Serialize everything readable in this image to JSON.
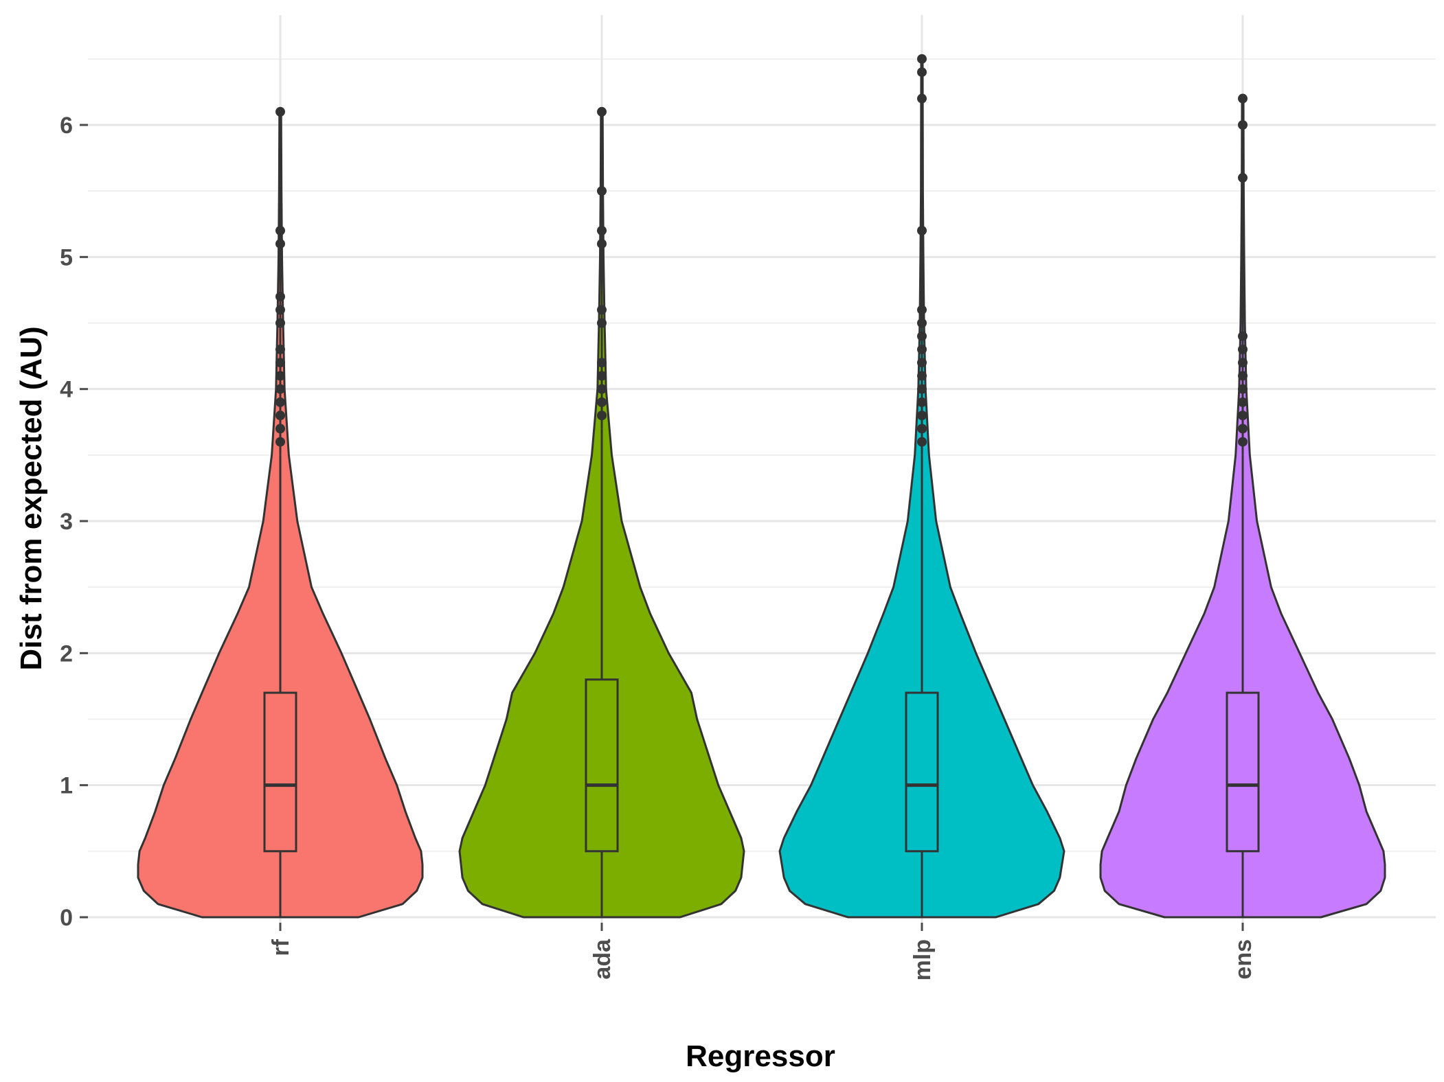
{
  "chart_data": {
    "type": "violin",
    "title": "",
    "xlabel": "Regressor",
    "ylabel": "Dist from expected (AU)",
    "categories": [
      "rf",
      "ada",
      "mlp",
      "ens"
    ],
    "ylim": [
      -0.15,
      6.6
    ],
    "yticks": [
      0,
      1,
      2,
      3,
      4,
      5,
      6
    ],
    "yticks_minor": [
      0.5,
      1.5,
      2.5,
      3.5,
      4.5,
      5.5,
      6.5
    ],
    "grid": true,
    "legend": "none",
    "colors": {
      "rf": "#F8766D",
      "ada": "#7CAE00",
      "mlp": "#00BFC4",
      "ens": "#C77CFF",
      "outline": "#333333",
      "grid": "#e6e6e6",
      "tick_text": "#4d4d4d"
    },
    "series": [
      {
        "category": "rf",
        "box": {
          "lower_whisker": 0,
          "q1": 0.5,
          "median": 1.0,
          "q3": 1.7,
          "upper_whisker": 3.5
        },
        "outliers": [
          3.6,
          3.7,
          3.8,
          3.9,
          4.0,
          4.1,
          4.2,
          4.3,
          4.5,
          4.6,
          4.7,
          5.1,
          5.2,
          6.1
        ],
        "violin_max": 6.1,
        "density": [
          [
            0.0,
            0.55
          ],
          [
            0.1,
            0.86
          ],
          [
            0.2,
            0.96
          ],
          [
            0.3,
            1.0
          ],
          [
            0.4,
            1.0
          ],
          [
            0.5,
            0.99
          ],
          [
            0.6,
            0.95
          ],
          [
            0.8,
            0.88
          ],
          [
            1.0,
            0.82
          ],
          [
            1.2,
            0.74
          ],
          [
            1.5,
            0.63
          ],
          [
            1.7,
            0.55
          ],
          [
            2.0,
            0.43
          ],
          [
            2.3,
            0.3
          ],
          [
            2.5,
            0.22
          ],
          [
            3.0,
            0.12
          ],
          [
            3.5,
            0.06
          ],
          [
            4.0,
            0.03
          ],
          [
            4.5,
            0.02
          ],
          [
            5.0,
            0.012
          ],
          [
            5.5,
            0.008
          ],
          [
            6.1,
            0.006
          ]
        ]
      },
      {
        "category": "ada",
        "box": {
          "lower_whisker": 0,
          "q1": 0.5,
          "median": 1.0,
          "q3": 1.8,
          "upper_whisker": 3.7
        },
        "outliers": [
          3.8,
          3.9,
          4.0,
          4.1,
          4.2,
          4.5,
          4.6,
          5.1,
          5.2,
          5.5,
          6.1
        ],
        "violin_max": 6.1,
        "density": [
          [
            0.0,
            0.55
          ],
          [
            0.1,
            0.84
          ],
          [
            0.2,
            0.94
          ],
          [
            0.3,
            0.98
          ],
          [
            0.5,
            1.0
          ],
          [
            0.6,
            0.98
          ],
          [
            0.8,
            0.9
          ],
          [
            1.0,
            0.82
          ],
          [
            1.2,
            0.76
          ],
          [
            1.5,
            0.67
          ],
          [
            1.7,
            0.63
          ],
          [
            2.0,
            0.47
          ],
          [
            2.3,
            0.34
          ],
          [
            2.5,
            0.27
          ],
          [
            3.0,
            0.14
          ],
          [
            3.5,
            0.07
          ],
          [
            4.0,
            0.03
          ],
          [
            4.5,
            0.02
          ],
          [
            5.0,
            0.012
          ],
          [
            5.5,
            0.008
          ],
          [
            6.1,
            0.006
          ]
        ]
      },
      {
        "category": "mlp",
        "box": {
          "lower_whisker": 0,
          "q1": 0.5,
          "median": 1.0,
          "q3": 1.7,
          "upper_whisker": 3.5
        },
        "outliers": [
          3.6,
          3.7,
          3.8,
          3.9,
          4.0,
          4.1,
          4.2,
          4.3,
          4.4,
          4.5,
          4.6,
          5.2,
          6.2,
          6.4,
          6.5
        ],
        "violin_max": 6.5,
        "density": [
          [
            0.0,
            0.52
          ],
          [
            0.1,
            0.82
          ],
          [
            0.2,
            0.93
          ],
          [
            0.3,
            0.97
          ],
          [
            0.5,
            1.0
          ],
          [
            0.6,
            0.97
          ],
          [
            0.8,
            0.88
          ],
          [
            1.0,
            0.78
          ],
          [
            1.2,
            0.7
          ],
          [
            1.5,
            0.58
          ],
          [
            1.7,
            0.5
          ],
          [
            2.0,
            0.38
          ],
          [
            2.3,
            0.27
          ],
          [
            2.5,
            0.2
          ],
          [
            3.0,
            0.1
          ],
          [
            3.5,
            0.05
          ],
          [
            4.0,
            0.025
          ],
          [
            4.5,
            0.015
          ],
          [
            5.0,
            0.01
          ],
          [
            5.5,
            0.007
          ],
          [
            6.0,
            0.006
          ],
          [
            6.5,
            0.005
          ]
        ]
      },
      {
        "category": "ens",
        "box": {
          "lower_whisker": 0,
          "q1": 0.5,
          "median": 1.0,
          "q3": 1.7,
          "upper_whisker": 3.5
        },
        "outliers": [
          3.6,
          3.7,
          3.8,
          3.9,
          4.0,
          4.1,
          4.2,
          4.3,
          4.4,
          5.6,
          6.0,
          6.2
        ],
        "violin_max": 6.2,
        "density": [
          [
            0.0,
            0.55
          ],
          [
            0.1,
            0.87
          ],
          [
            0.2,
            0.97
          ],
          [
            0.3,
            1.0
          ],
          [
            0.4,
            1.0
          ],
          [
            0.5,
            0.99
          ],
          [
            0.6,
            0.95
          ],
          [
            0.8,
            0.87
          ],
          [
            1.0,
            0.82
          ],
          [
            1.2,
            0.75
          ],
          [
            1.5,
            0.63
          ],
          [
            1.7,
            0.53
          ],
          [
            2.0,
            0.4
          ],
          [
            2.3,
            0.27
          ],
          [
            2.5,
            0.2
          ],
          [
            3.0,
            0.1
          ],
          [
            3.5,
            0.05
          ],
          [
            4.0,
            0.025
          ],
          [
            4.5,
            0.015
          ],
          [
            5.0,
            0.01
          ],
          [
            5.5,
            0.007
          ],
          [
            6.2,
            0.005
          ]
        ]
      }
    ]
  }
}
